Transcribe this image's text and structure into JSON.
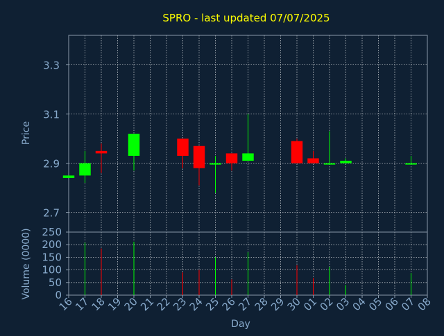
{
  "colors": {
    "background": "#0f2033",
    "title": "#ffff00",
    "text": "#88aacc",
    "axis": "#8899aa",
    "grid": "#ffffff",
    "up": "#00ff00",
    "down": "#ff0000"
  },
  "chart_data": [
    {
      "type": "candlestick",
      "title": "SPRO - last updated 07/07/2025",
      "ylabel": "Price",
      "ylim": [
        2.62,
        3.42
      ],
      "yticks": [
        "2.7",
        "2.9",
        "3.1",
        "3.3"
      ],
      "grid": true,
      "categories": [
        "16",
        "17",
        "18",
        "19",
        "20",
        "21",
        "22",
        "23",
        "24",
        "25",
        "26",
        "27",
        "28",
        "29",
        "30",
        "01",
        "02",
        "03",
        "04",
        "05",
        "06",
        "07",
        "08"
      ],
      "candles": [
        {
          "x": "16",
          "open": 2.84,
          "high": 2.85,
          "low": 2.84,
          "close": 2.85
        },
        {
          "x": "17",
          "open": 2.85,
          "high": 2.95,
          "low": 2.82,
          "close": 2.9
        },
        {
          "x": "18",
          "open": 2.95,
          "high": 2.98,
          "low": 2.86,
          "close": 2.94
        },
        {
          "x": "20",
          "open": 2.93,
          "high": 3.02,
          "low": 2.87,
          "close": 3.02
        },
        {
          "x": "23",
          "open": 3.0,
          "high": 3.0,
          "low": 2.88,
          "close": 2.93
        },
        {
          "x": "24",
          "open": 2.97,
          "high": 2.97,
          "low": 2.81,
          "close": 2.88
        },
        {
          "x": "25",
          "open": 2.9,
          "high": 2.93,
          "low": 2.78,
          "close": 2.9
        },
        {
          "x": "26",
          "open": 2.94,
          "high": 2.94,
          "low": 2.87,
          "close": 2.9
        },
        {
          "x": "27",
          "open": 2.91,
          "high": 3.1,
          "low": 2.91,
          "close": 2.94
        },
        {
          "x": "30",
          "open": 2.99,
          "high": 3.0,
          "low": 2.9,
          "close": 2.9
        },
        {
          "x": "01",
          "open": 2.92,
          "high": 2.95,
          "low": 2.9,
          "close": 2.9
        },
        {
          "x": "02",
          "open": 2.9,
          "high": 3.03,
          "low": 2.9,
          "close": 2.9
        },
        {
          "x": "03",
          "open": 2.9,
          "high": 2.92,
          "low": 2.9,
          "close": 2.91
        },
        {
          "x": "07",
          "open": 2.9,
          "high": 2.93,
          "low": 2.9,
          "close": 2.9
        }
      ]
    },
    {
      "type": "bar",
      "xlabel": "Day",
      "ylabel": "Volume (0000)",
      "ylim": [
        0,
        250
      ],
      "yticks": [
        "0",
        "50",
        "100",
        "150",
        "200",
        "250"
      ],
      "grid": true,
      "categories": [
        "16",
        "17",
        "18",
        "19",
        "20",
        "21",
        "22",
        "23",
        "24",
        "25",
        "26",
        "27",
        "28",
        "29",
        "30",
        "01",
        "02",
        "03",
        "04",
        "05",
        "06",
        "07",
        "08"
      ],
      "bars": [
        {
          "x": "17",
          "value": 208,
          "direction": "up"
        },
        {
          "x": "18",
          "value": 185,
          "direction": "down"
        },
        {
          "x": "20",
          "value": 212,
          "direction": "up"
        },
        {
          "x": "23",
          "value": 90,
          "direction": "down"
        },
        {
          "x": "24",
          "value": 100,
          "direction": "down"
        },
        {
          "x": "25",
          "value": 150,
          "direction": "up"
        },
        {
          "x": "26",
          "value": 62,
          "direction": "down"
        },
        {
          "x": "27",
          "value": 170,
          "direction": "up"
        },
        {
          "x": "30",
          "value": 118,
          "direction": "down"
        },
        {
          "x": "01",
          "value": 68,
          "direction": "down"
        },
        {
          "x": "02",
          "value": 112,
          "direction": "up"
        },
        {
          "x": "03",
          "value": 40,
          "direction": "up"
        },
        {
          "x": "07",
          "value": 88,
          "direction": "up"
        }
      ]
    }
  ]
}
